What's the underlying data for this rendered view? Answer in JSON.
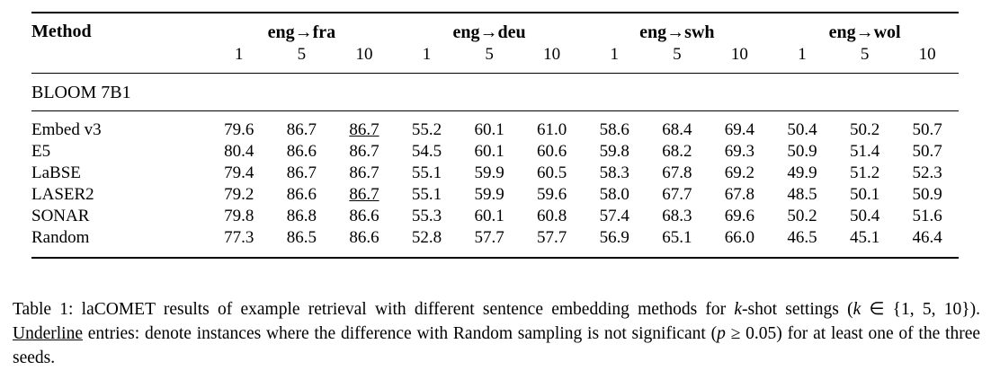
{
  "colors": {
    "text": "#000000",
    "background": "#ffffff",
    "rule": "#000000"
  },
  "table": {
    "method_header": "Method",
    "groups": [
      {
        "label": "eng→fra"
      },
      {
        "label": "eng→deu"
      },
      {
        "label": "eng→swh"
      },
      {
        "label": "eng→wol"
      }
    ],
    "k_values": [
      "1",
      "5",
      "10"
    ],
    "section": "BLOOM 7B1",
    "rows": [
      {
        "method": "Embed v3",
        "cells": [
          {
            "v": "79.6"
          },
          {
            "v": "86.7"
          },
          {
            "v": "86.7",
            "b": true,
            "u": true
          },
          {
            "v": "55.2"
          },
          {
            "v": "60.1",
            "b": true
          },
          {
            "v": "61.0",
            "b": true
          },
          {
            "v": "58.6"
          },
          {
            "v": "68.4",
            "b": true
          },
          {
            "v": "69.4"
          },
          {
            "v": "50.4"
          },
          {
            "v": "50.2"
          },
          {
            "v": "50.7"
          }
        ]
      },
      {
        "method": "E5",
        "cells": [
          {
            "v": "80.4",
            "b": true
          },
          {
            "v": "86.6"
          },
          {
            "v": "86.7",
            "b": true
          },
          {
            "v": "54.5"
          },
          {
            "v": "60.1",
            "b": true
          },
          {
            "v": "60.6"
          },
          {
            "v": "59.8",
            "b": true
          },
          {
            "v": "68.2"
          },
          {
            "v": "69.3"
          },
          {
            "v": "50.9",
            "b": true
          },
          {
            "v": "51.4",
            "b": true
          },
          {
            "v": "50.7"
          }
        ]
      },
      {
        "method": "LaBSE",
        "cells": [
          {
            "v": "79.4"
          },
          {
            "v": "86.7"
          },
          {
            "v": "86.7",
            "b": true
          },
          {
            "v": "55.1"
          },
          {
            "v": "59.9"
          },
          {
            "v": "60.5"
          },
          {
            "v": "58.3"
          },
          {
            "v": "67.8"
          },
          {
            "v": "69.2"
          },
          {
            "v": "49.9"
          },
          {
            "v": "51.2"
          },
          {
            "v": "52.3",
            "b": true
          }
        ]
      },
      {
        "method": "LASER2",
        "cells": [
          {
            "v": "79.2"
          },
          {
            "v": "86.6"
          },
          {
            "v": "86.7",
            "b": true,
            "u": true
          },
          {
            "v": "55.1"
          },
          {
            "v": "59.9"
          },
          {
            "v": "59.6"
          },
          {
            "v": "58.0"
          },
          {
            "v": "67.7"
          },
          {
            "v": "67.8"
          },
          {
            "v": "48.5"
          },
          {
            "v": "50.1"
          },
          {
            "v": "50.9"
          }
        ]
      },
      {
        "method": "SONAR",
        "cells": [
          {
            "v": "79.8"
          },
          {
            "v": "86.8",
            "b": true
          },
          {
            "v": "86.6"
          },
          {
            "v": "55.3",
            "b": true
          },
          {
            "v": "60.1",
            "b": true
          },
          {
            "v": "60.8"
          },
          {
            "v": "57.4"
          },
          {
            "v": "68.3"
          },
          {
            "v": "69.6",
            "b": true
          },
          {
            "v": "50.2"
          },
          {
            "v": "50.4"
          },
          {
            "v": "51.6"
          }
        ]
      },
      {
        "method": "Random",
        "cells": [
          {
            "v": "77.3"
          },
          {
            "v": "86.5"
          },
          {
            "v": "86.6"
          },
          {
            "v": "52.8"
          },
          {
            "v": "57.7"
          },
          {
            "v": "57.7"
          },
          {
            "v": "56.9"
          },
          {
            "v": "65.1"
          },
          {
            "v": "66.0"
          },
          {
            "v": "46.5"
          },
          {
            "v": "45.1"
          },
          {
            "v": "46.4"
          }
        ]
      }
    ]
  },
  "caption": {
    "prefix": "Table 1: laCOMET results of example retrieval with different sentence embedding methods for ",
    "k1": "k",
    "seg2": "-shot settings (",
    "k2": "k",
    "seg3": " ∈ {1, 5, 10}). ",
    "underline_word": "Underline",
    "seg4": " entries: denote instances where the difference with Random sampling is not significant (",
    "p": "p",
    "seg5": " ≥ 0.05) for at least one of the three seeds."
  }
}
